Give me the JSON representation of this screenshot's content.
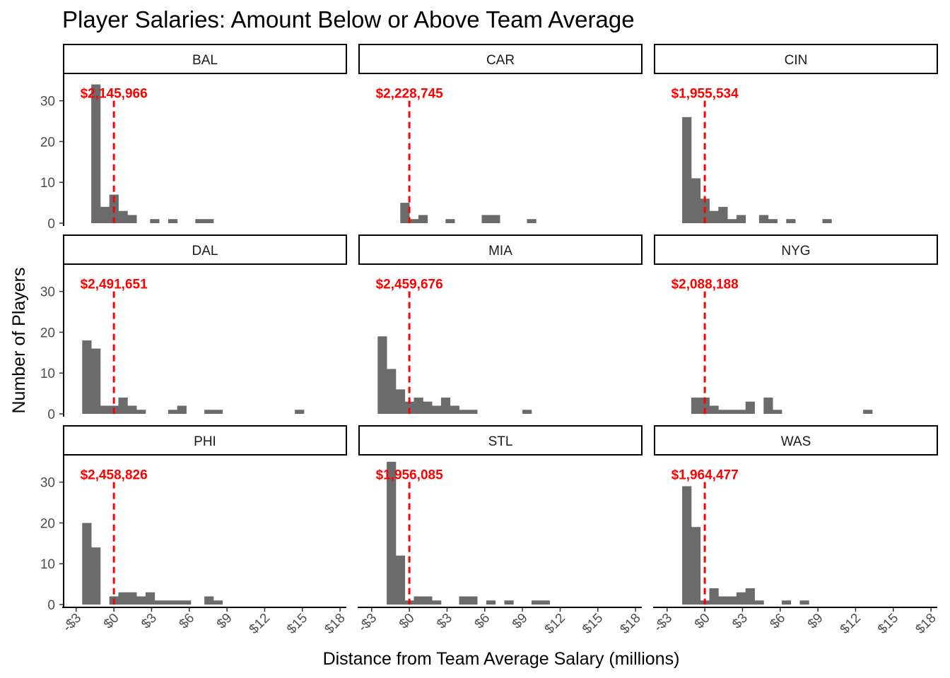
{
  "chart_data": {
    "type": "bar",
    "title": "Player Salaries: Amount Below or Above Team Average",
    "xlabel": "Distance from Team Average Salary (millions)",
    "ylabel": "Number of Players",
    "xlim": [
      -4,
      18.5
    ],
    "ylim": [
      0,
      36
    ],
    "x_ticks": [
      -3,
      0,
      3,
      6,
      9,
      12,
      15,
      18
    ],
    "x_tick_labels": [
      "-$3",
      "$0",
      "$3",
      "$6",
      "$9",
      "$12",
      "$15",
      "$18"
    ],
    "y_ticks": [
      0,
      10,
      20,
      30
    ],
    "y_tick_labels": [
      "0",
      "10",
      "20",
      "30"
    ],
    "bin_width": 0.72,
    "grid": false,
    "reference_line_x": 0,
    "colors": {
      "bars": "#6b6b6b",
      "reference_line": "#ff0000",
      "annotation": "#ff0000"
    },
    "panels": [
      {
        "team": "BAL",
        "average_label": "$2,145,966",
        "bins": [
          [
            -1.8,
            34
          ],
          [
            -1.08,
            4
          ],
          [
            -0.36,
            7
          ],
          [
            0.36,
            3
          ],
          [
            1.08,
            2
          ],
          [
            2.88,
            1
          ],
          [
            4.32,
            1
          ],
          [
            6.48,
            1
          ],
          [
            7.2,
            1
          ]
        ]
      },
      {
        "team": "CAR",
        "average_label": "$2,228,745",
        "bins": [
          [
            -0.72,
            5
          ],
          [
            0,
            1
          ],
          [
            0.72,
            2
          ],
          [
            2.88,
            1
          ],
          [
            5.76,
            2
          ],
          [
            6.48,
            2
          ],
          [
            9.36,
            1
          ]
        ]
      },
      {
        "team": "CIN",
        "average_label": "$1,955,534",
        "bins": [
          [
            -1.8,
            26
          ],
          [
            -1.08,
            11
          ],
          [
            -0.36,
            6
          ],
          [
            0.36,
            3
          ],
          [
            1.08,
            4
          ],
          [
            1.8,
            1
          ],
          [
            2.52,
            2
          ],
          [
            4.32,
            2
          ],
          [
            5.04,
            1
          ],
          [
            6.48,
            1
          ],
          [
            9.36,
            1
          ]
        ]
      },
      {
        "team": "DAL",
        "average_label": "$2,491,651",
        "bins": [
          [
            -2.52,
            18
          ],
          [
            -1.8,
            16
          ],
          [
            -1.08,
            2
          ],
          [
            -0.36,
            2
          ],
          [
            0.36,
            4
          ],
          [
            1.08,
            2
          ],
          [
            1.8,
            1
          ],
          [
            4.32,
            1
          ],
          [
            5.04,
            2
          ],
          [
            7.2,
            1
          ],
          [
            7.92,
            1
          ],
          [
            14.4,
            1
          ]
        ]
      },
      {
        "team": "MIA",
        "average_label": "$2,459,676",
        "bins": [
          [
            -2.52,
            19
          ],
          [
            -1.8,
            11
          ],
          [
            -1.08,
            6
          ],
          [
            -0.36,
            3
          ],
          [
            0.36,
            4
          ],
          [
            1.08,
            3
          ],
          [
            1.8,
            2
          ],
          [
            2.52,
            4
          ],
          [
            3.24,
            2
          ],
          [
            3.96,
            1
          ],
          [
            4.68,
            1
          ],
          [
            9.0,
            1
          ]
        ]
      },
      {
        "team": "NYG",
        "average_label": "$2,088,188",
        "bins": [
          [
            -1.08,
            4
          ],
          [
            -0.36,
            4
          ],
          [
            0.36,
            2
          ],
          [
            1.08,
            1
          ],
          [
            1.8,
            1
          ],
          [
            2.52,
            1
          ],
          [
            3.24,
            3
          ],
          [
            4.68,
            4
          ],
          [
            5.4,
            1
          ],
          [
            12.6,
            1
          ]
        ]
      },
      {
        "team": "PHI",
        "average_label": "$2,458,826",
        "bins": [
          [
            -2.52,
            20
          ],
          [
            -1.8,
            14
          ],
          [
            -0.36,
            2
          ],
          [
            0.36,
            3
          ],
          [
            1.08,
            3
          ],
          [
            1.8,
            2
          ],
          [
            2.52,
            3
          ],
          [
            3.24,
            1
          ],
          [
            3.96,
            1
          ],
          [
            4.68,
            1
          ],
          [
            5.4,
            1
          ],
          [
            7.2,
            2
          ],
          [
            7.92,
            1
          ]
        ]
      },
      {
        "team": "STL",
        "average_label": "$1,956,085",
        "bins": [
          [
            -1.8,
            35
          ],
          [
            -1.08,
            12
          ],
          [
            -0.36,
            1
          ],
          [
            0.36,
            2
          ],
          [
            1.08,
            2
          ],
          [
            1.8,
            1
          ],
          [
            3.96,
            2
          ],
          [
            4.68,
            2
          ],
          [
            6.12,
            1
          ],
          [
            7.56,
            1
          ],
          [
            9.72,
            1
          ],
          [
            10.44,
            1
          ]
        ]
      },
      {
        "team": "WAS",
        "average_label": "$1,964,477",
        "bins": [
          [
            -1.8,
            29
          ],
          [
            -1.08,
            19
          ],
          [
            -0.36,
            1
          ],
          [
            0.36,
            4
          ],
          [
            1.08,
            2
          ],
          [
            1.8,
            2
          ],
          [
            2.52,
            3
          ],
          [
            3.24,
            4
          ],
          [
            3.96,
            1
          ],
          [
            6.12,
            1
          ],
          [
            7.56,
            1
          ]
        ]
      }
    ]
  }
}
